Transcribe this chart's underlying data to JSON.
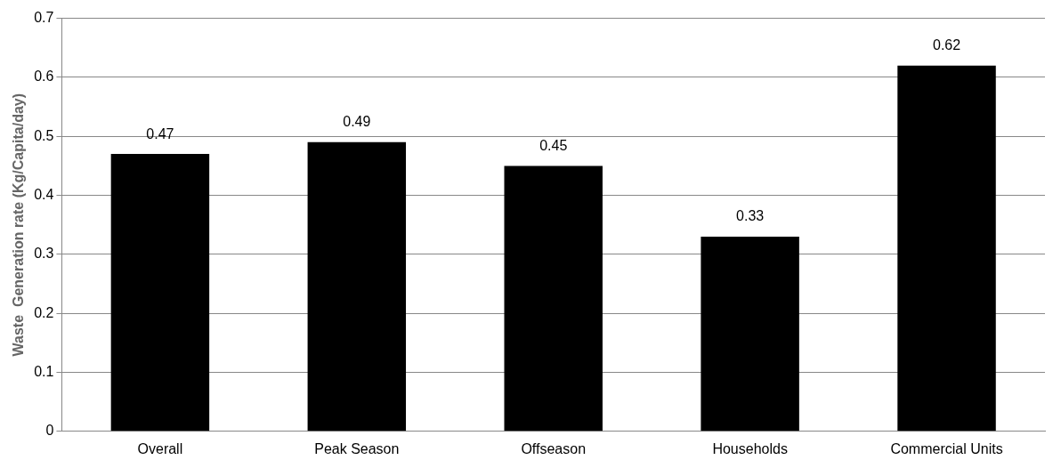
{
  "chart_data": {
    "type": "bar",
    "ylabel": "Waste  Generation rate (Kg/Capita/day)",
    "categories": [
      "Overall",
      "Peak Season",
      "Offseason",
      "Households",
      "Commercial Units"
    ],
    "values": [
      0.47,
      0.49,
      0.45,
      0.33,
      0.62
    ],
    "color": "#000000",
    "ylim": [
      0,
      0.7
    ],
    "yticks": [
      0,
      0.1,
      0.2,
      0.3,
      0.4,
      0.5,
      0.6,
      0.7
    ],
    "grid": "y",
    "legend": false,
    "data_labels": true
  }
}
